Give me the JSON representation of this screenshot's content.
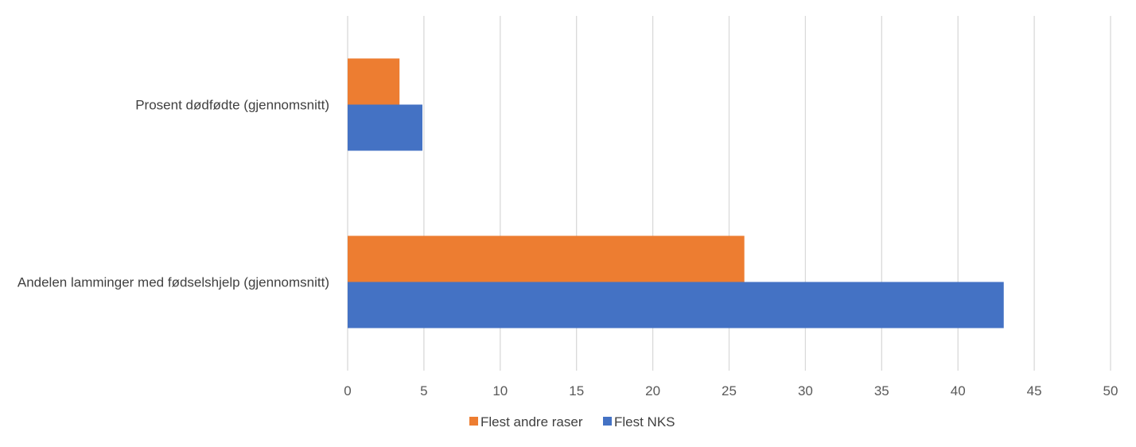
{
  "chart_data": {
    "type": "bar",
    "orientation": "horizontal",
    "categories": [
      "Prosent dødfødte (gjennomsnitt)",
      "Andelen lamminger med fødselshjelp (gjennomsnitt)"
    ],
    "series": [
      {
        "name": "Flest andre raser",
        "color": "#ED7D31",
        "values": [
          3.4,
          26
        ]
      },
      {
        "name": "Flest NKS",
        "color": "#4472C4",
        "values": [
          4.9,
          43
        ]
      }
    ],
    "xlim": [
      0,
      50
    ],
    "xticks": [
      0,
      5,
      10,
      15,
      20,
      25,
      30,
      35,
      40,
      45,
      50
    ],
    "grid": true,
    "legend_position": "bottom"
  }
}
